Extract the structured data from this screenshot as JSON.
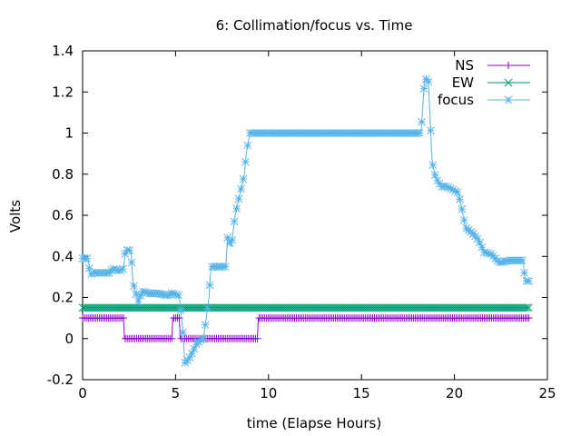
{
  "chart_data": {
    "type": "line",
    "title": "6: Collimation/focus vs. Time",
    "xlabel": "time (Elapse Hours)",
    "ylabel": "Volts",
    "xlim": [
      0,
      25
    ],
    "ylim": [
      -0.2,
      1.4
    ],
    "xticks": [
      0,
      5,
      10,
      15,
      20,
      25
    ],
    "yticks": [
      -0.2,
      0,
      0.2,
      0.4,
      0.6,
      0.8,
      1,
      1.2,
      1.4
    ],
    "xtick_labels": [
      "0",
      "5",
      "10",
      "15",
      "20",
      "25"
    ],
    "ytick_labels": [
      "-0.2",
      "0",
      "0.2",
      "0.4",
      "0.6",
      "0.8",
      "1",
      "1.2",
      "1.4"
    ],
    "grid": false,
    "legend_position": "top-right",
    "series": [
      {
        "name": "NS",
        "color": "#9400d3",
        "marker": "plus",
        "x": [
          0,
          2.2,
          2.25,
          4.8,
          4.85,
          5.2,
          5.25,
          9.4,
          9.45,
          24
        ],
        "y": [
          0.1,
          0.1,
          0,
          0,
          0.1,
          0.1,
          0,
          0,
          0.1,
          0.1
        ]
      },
      {
        "name": "EW",
        "color": "#009e73",
        "marker": "cross",
        "x": [
          0,
          24
        ],
        "y": [
          0.15,
          0.15
        ]
      },
      {
        "name": "focus",
        "color": "#56b4e9",
        "marker": "star",
        "x": [
          0,
          0.3,
          0.4,
          0.6,
          1.0,
          1.5,
          1.6,
          2.0,
          2.2,
          2.3,
          2.6,
          2.7,
          2.8,
          3.0,
          3.2,
          3.6,
          4.0,
          4.6,
          4.8,
          5.2,
          5.4,
          5.5,
          5.7,
          5.9,
          6.1,
          6.3,
          6.5,
          6.8,
          6.9,
          7.0,
          7.3,
          7.7,
          7.8,
          8.0,
          8.2,
          8.4,
          8.5,
          8.7,
          8.8,
          8.9,
          9.0,
          9.2,
          12.0,
          15.0,
          18.2,
          18.4,
          18.6,
          18.7,
          18.8,
          19.0,
          19.3,
          19.6,
          20.0,
          20.2,
          20.4,
          20.6,
          21.0,
          21.3,
          21.6,
          22.0,
          22.4,
          23.0,
          23.7,
          23.8,
          24.0
        ],
        "y": [
          0.39,
          0.39,
          0.31,
          0.32,
          0.32,
          0.32,
          0.34,
          0.33,
          0.34,
          0.43,
          0.43,
          0.28,
          0.24,
          0.18,
          0.23,
          0.22,
          0.22,
          0.21,
          0.22,
          0.21,
          0.03,
          -0.12,
          -0.1,
          -0.07,
          -0.03,
          -0.01,
          0,
          0.2,
          0.35,
          0.35,
          0.35,
          0.35,
          0.49,
          0.45,
          0.6,
          0.68,
          0.72,
          0.8,
          0.9,
          0.95,
          1.0,
          1.0,
          1.0,
          1.0,
          1.0,
          1.27,
          1.25,
          1.05,
          0.86,
          0.78,
          0.74,
          0.74,
          0.72,
          0.71,
          0.63,
          0.54,
          0.51,
          0.48,
          0.42,
          0.41,
          0.37,
          0.38,
          0.38,
          0.28,
          0.28
        ]
      }
    ]
  }
}
